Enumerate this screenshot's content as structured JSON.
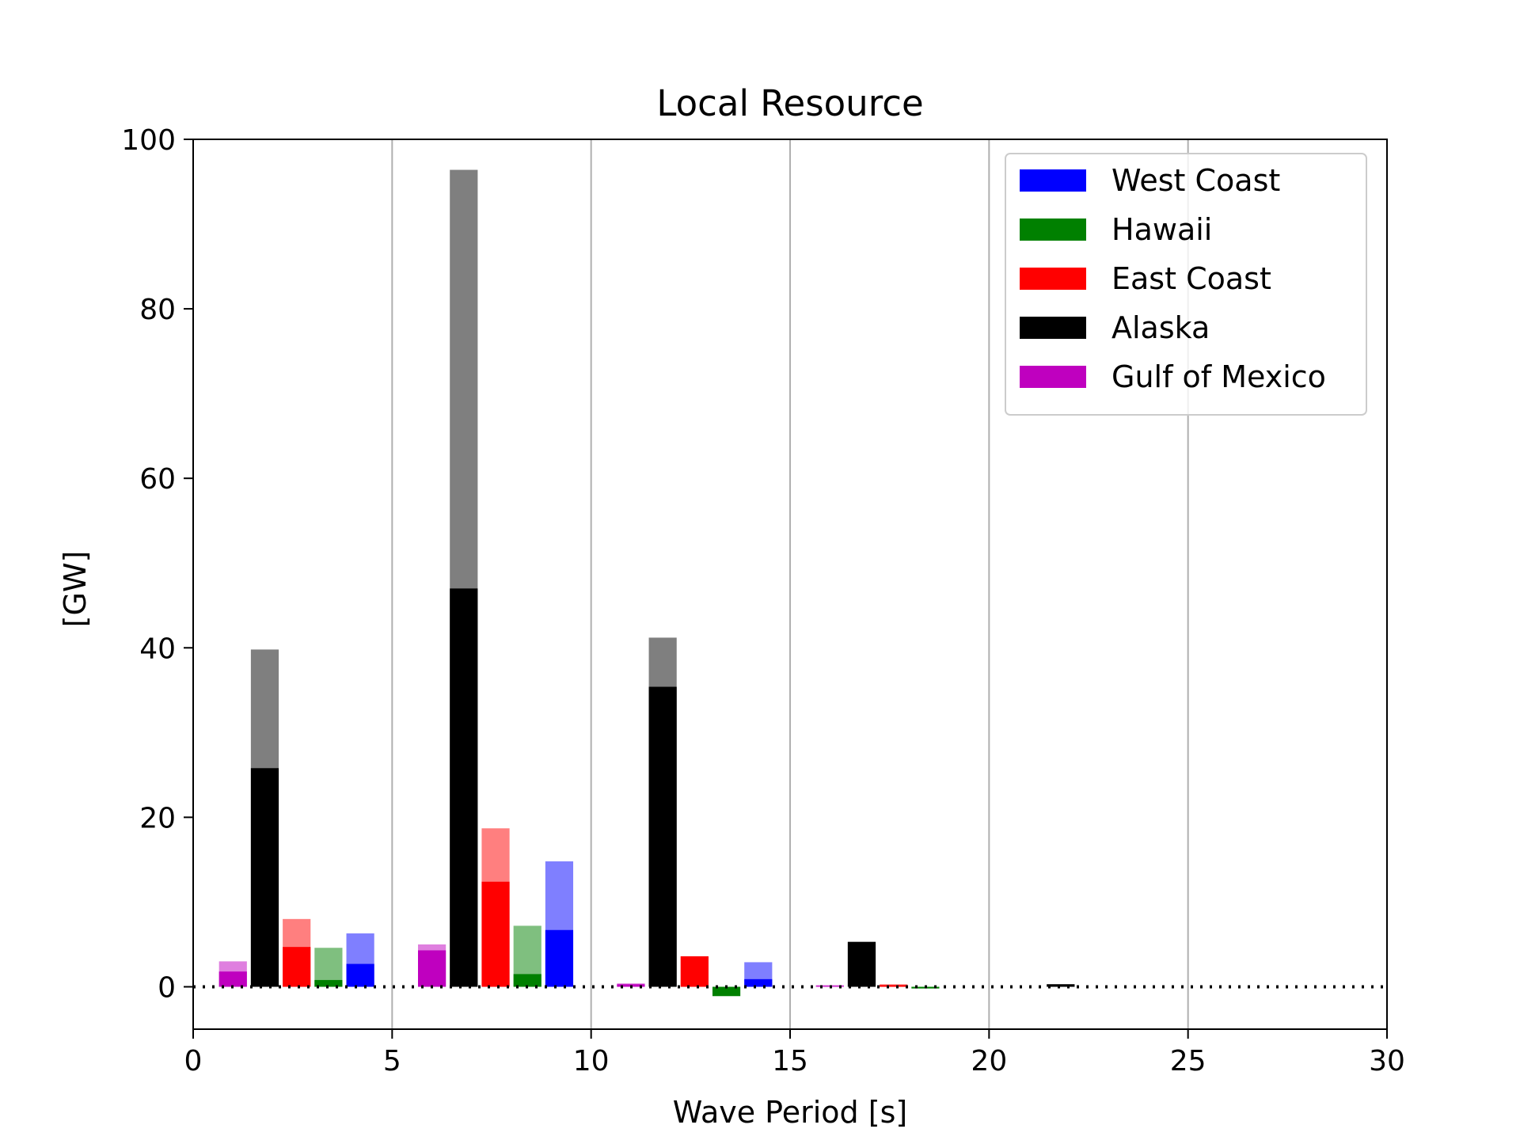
{
  "chart_data": {
    "type": "bar",
    "title": "Local Resource",
    "xlabel": "Wave Period [s]",
    "ylabel": "[GW]",
    "xlim": [
      0,
      30
    ],
    "ylim": [
      -5,
      100
    ],
    "xticks": [
      "0",
      "5",
      "10",
      "15",
      "20",
      "25",
      "30"
    ],
    "yticks": [
      "0",
      "20",
      "40",
      "60",
      "80",
      "100"
    ],
    "grid": "vertical",
    "legend_position": "top-right",
    "zero_line": "dotted",
    "bar_width": 0.7,
    "series": [
      {
        "name": "West Coast",
        "color": "#0000ff",
        "points": [
          {
            "x": 4.2,
            "total": 6.3,
            "value": 2.7
          },
          {
            "x": 9.2,
            "total": 14.8,
            "value": 6.7
          },
          {
            "x": 14.2,
            "total": 2.9,
            "value": 0.9
          }
        ]
      },
      {
        "name": "Hawaii",
        "color": "#008000",
        "points": [
          {
            "x": 3.4,
            "total": 4.6,
            "value": 0.8
          },
          {
            "x": 8.4,
            "total": 7.2,
            "value": 1.5
          },
          {
            "x": 13.4,
            "total": 0.0,
            "value": -1.1
          },
          {
            "x": 18.4,
            "total": 0.0,
            "value": -0.2
          }
        ]
      },
      {
        "name": "East Coast",
        "color": "#ff0000",
        "points": [
          {
            "x": 2.6,
            "total": 8.0,
            "value": 4.7
          },
          {
            "x": 7.6,
            "total": 18.7,
            "value": 12.4
          },
          {
            "x": 12.6,
            "total": 3.6,
            "value": 3.6
          },
          {
            "x": 17.6,
            "total": 0.3,
            "value": 0.2
          }
        ]
      },
      {
        "name": "Alaska",
        "color": "#000000",
        "points": [
          {
            "x": 1.8,
            "total": 39.8,
            "value": 25.8
          },
          {
            "x": 6.8,
            "total": 96.4,
            "value": 47.0
          },
          {
            "x": 11.8,
            "total": 41.2,
            "value": 35.4
          },
          {
            "x": 16.8,
            "total": 5.3,
            "value": 5.3
          },
          {
            "x": 21.8,
            "total": 0.3,
            "value": 0.3
          }
        ]
      },
      {
        "name": "Gulf of Mexico",
        "color": "#bf00bf",
        "points": [
          {
            "x": 1.0,
            "total": 3.0,
            "value": 1.8
          },
          {
            "x": 6.0,
            "total": 5.0,
            "value": 4.3
          },
          {
            "x": 11.0,
            "total": 0.4,
            "value": 0.3
          },
          {
            "x": 16.0,
            "total": 0.2,
            "value": 0.1
          }
        ]
      }
    ]
  }
}
